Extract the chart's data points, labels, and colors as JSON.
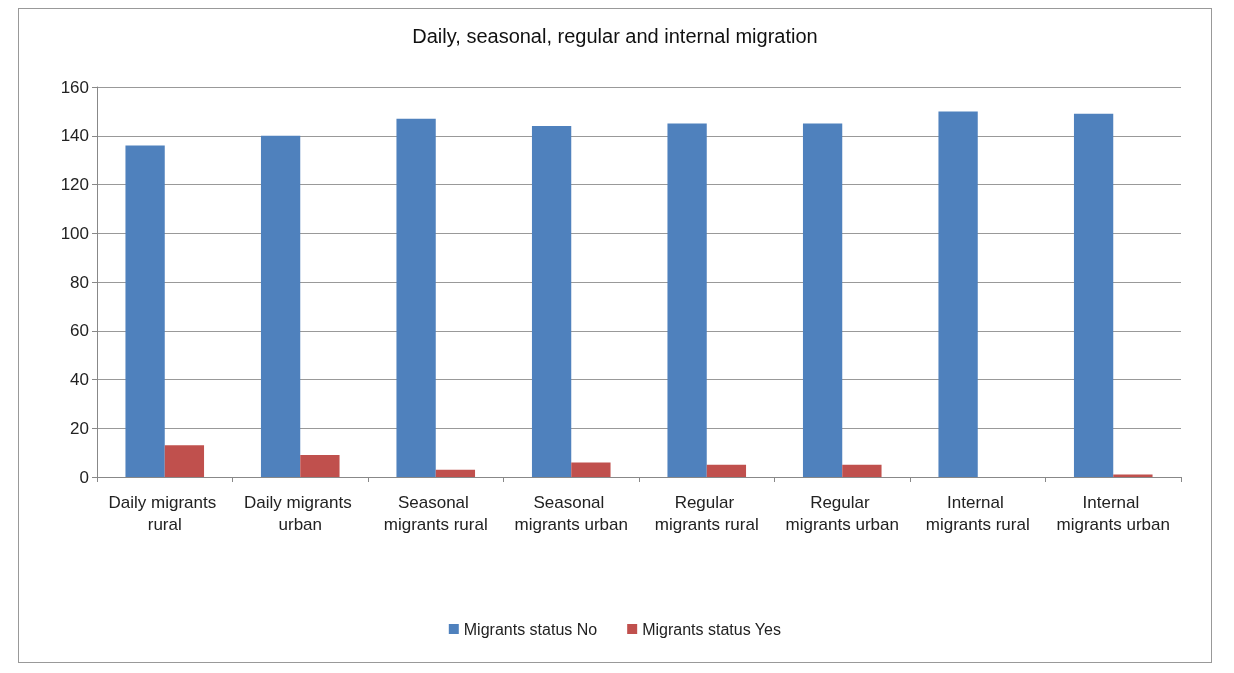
{
  "chart_data": {
    "type": "bar",
    "title": "Daily, seasonal, regular and internal migration",
    "categories": [
      "Daily migrants rural",
      "Daily migrants urban",
      "Seasonal migrants rural",
      "Seasonal migrants urban",
      "Regular migrants rural",
      "Regular migrants urban",
      "Internal migrants rural",
      "Internal migrants urban"
    ],
    "series": [
      {
        "name": "Migrants status No",
        "color": "#4f81bd",
        "values": [
          136,
          140,
          147,
          144,
          145,
          145,
          150,
          149
        ]
      },
      {
        "name": "Migrants status Yes",
        "color": "#c0504d",
        "values": [
          13,
          9,
          3,
          6,
          5,
          5,
          0,
          1
        ]
      }
    ],
    "ylim": [
      0,
      160
    ],
    "yticks": [
      0,
      20,
      40,
      60,
      80,
      100,
      120,
      140,
      160
    ],
    "grid": "y",
    "legend": "bottom"
  }
}
